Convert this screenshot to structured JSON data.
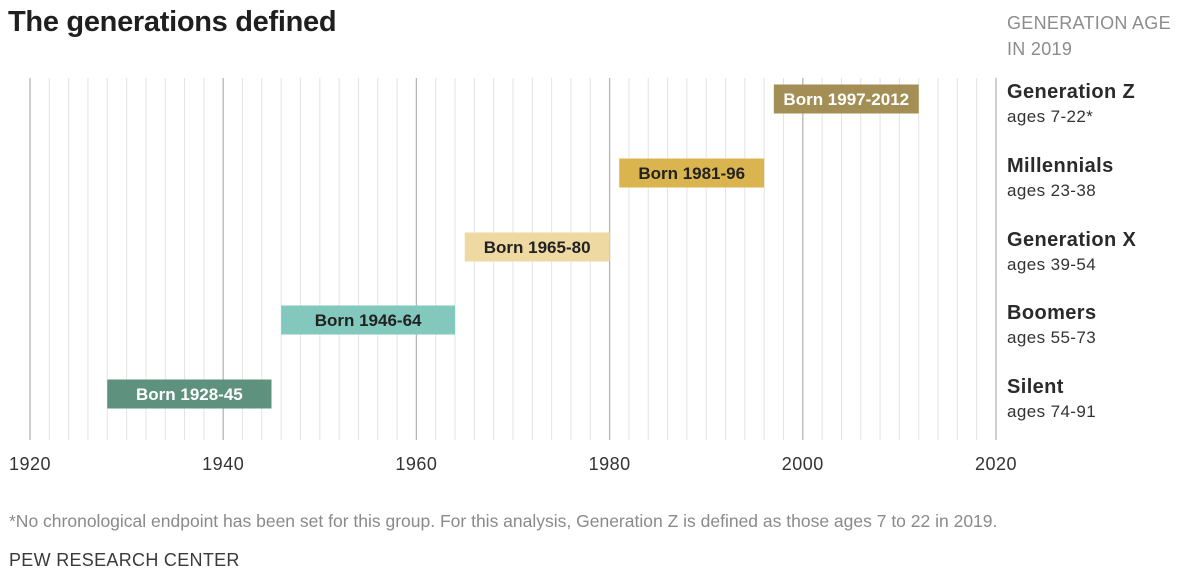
{
  "header": {
    "title": "The generations defined",
    "age_heading": "GENERATION AGE IN 2019"
  },
  "chart_data": {
    "type": "bar",
    "orientation": "horizontal-range",
    "title": "The generations defined",
    "xlim": [
      1920,
      2020
    ],
    "x_ticks": [
      1920,
      1940,
      1960,
      1980,
      2000,
      2020
    ],
    "grid": true,
    "series": [
      {
        "name": "Generation Z",
        "ages": "ages 7-22*",
        "start": 1997,
        "end": 2012,
        "label": "Born 1997-2012",
        "color": "#a38f55",
        "label_color": "#ffffff"
      },
      {
        "name": "Millennials",
        "ages": "ages 23-38",
        "start": 1981,
        "end": 1996,
        "label": "Born 1981-96",
        "color": "#d9b44f",
        "label_color": "#222222"
      },
      {
        "name": "Generation X",
        "ages": "ages 39-54",
        "start": 1965,
        "end": 1980,
        "label": "Born 1965-80",
        "color": "#efd9a3",
        "label_color": "#222222"
      },
      {
        "name": "Boomers",
        "ages": "ages 55-73",
        "start": 1946,
        "end": 1964,
        "label": "Born 1946-64",
        "color": "#82c8bc",
        "label_color": "#222222"
      },
      {
        "name": "Silent",
        "ages": "ages 74-91",
        "start": 1928,
        "end": 1945,
        "label": "Born 1928-45",
        "color": "#5e927f",
        "label_color": "#ffffff"
      }
    ]
  },
  "footer": {
    "footnote": "*No chronological endpoint has been set for this group. For this analysis, Generation Z is defined as those ages 7 to 22 in 2019.",
    "source": "PEW RESEARCH CENTER"
  }
}
